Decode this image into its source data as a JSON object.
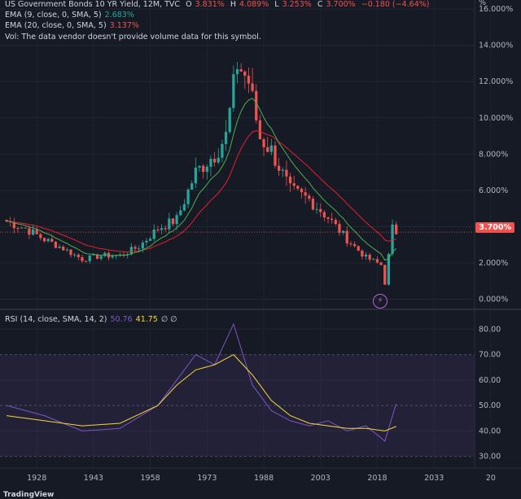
{
  "header": {
    "title": "US Government Bonds 10 YR Yield, 12M, TVC",
    "ohlc": {
      "o_label": "O",
      "o": "3.831%",
      "h_label": "H",
      "h": "4.089%",
      "l_label": "L",
      "l": "3.253%",
      "c_label": "C",
      "c": "3.700%",
      "change": "−0.180 (−4.64%)"
    },
    "ema9": {
      "label": "EMA (9, close, 0, SMA, 5)",
      "value": "2.683%"
    },
    "ema20": {
      "label": "EMA (20, close, 0, SMA, 5)",
      "value": "3.137%"
    },
    "vol_note": "Vol: The data vendor doesn't provide volume data for this symbol."
  },
  "price_axis": {
    "unit": "%",
    "ticks": [
      "16.000%",
      "14.000%",
      "12.000%",
      "10.000%",
      "8.000%",
      "6.000%",
      "4.000%",
      "2.000%",
      "0.000%"
    ],
    "current": "3.700%"
  },
  "rsi": {
    "label": "RSI (14, close, SMA, 14, 2)",
    "value": "50.76",
    "ma_value": "41.75",
    "extra": "∅ ∅",
    "ticks": [
      "80.00",
      "70.00",
      "60.00",
      "50.00",
      "40.00",
      "30.00"
    ]
  },
  "time_axis": {
    "ticks": [
      "1928",
      "1943",
      "1958",
      "1973",
      "1988",
      "2003",
      "2018",
      "2033",
      "20"
    ]
  },
  "branding": {
    "logo": "TradingView"
  },
  "colors": {
    "up": "#26a69a",
    "down": "#ef5350",
    "ema9": "#4caf50",
    "ema20": "#e91e2f",
    "rsi": "#7e57c2",
    "rsi_ma": "#f5d835",
    "bg": "#161a25"
  },
  "chart_data": [
    {
      "type": "candlestick",
      "x": [
        1920,
        1925,
        1930,
        1935,
        1940,
        1945,
        1950,
        1955,
        1960,
        1965,
        1970,
        1975,
        1978,
        1981,
        1984,
        1987,
        1990,
        1995,
        2000,
        2005,
        2010,
        2015,
        2019,
        2020,
        2022,
        2023
      ],
      "close": [
        4.3,
        3.9,
        3.3,
        2.8,
        2.2,
        2.4,
        2.4,
        2.9,
        3.9,
        4.4,
        7.0,
        8.0,
        9.0,
        13.0,
        12.0,
        8.9,
        8.2,
        6.0,
        5.5,
        4.5,
        3.3,
        2.3,
        1.9,
        0.9,
        3.9,
        3.7
      ],
      "ylim": [
        -0.2,
        16.5
      ]
    },
    {
      "type": "line",
      "x": [
        1920,
        1930,
        1940,
        1950,
        1960,
        1965,
        1970,
        1975,
        1980,
        1985,
        1990,
        1995,
        2000,
        2005,
        2010,
        2015,
        2020,
        2023
      ],
      "series": [
        {
          "name": "RSI",
          "values": [
            50,
            46,
            40,
            41,
            50,
            60,
            70,
            66,
            82,
            58,
            48,
            44,
            42,
            44,
            40,
            42,
            36,
            50.76
          ]
        },
        {
          "name": "RSI MA",
          "values": [
            46,
            44,
            42,
            43,
            50,
            58,
            64,
            66,
            70,
            62,
            52,
            46,
            43,
            42,
            41,
            41,
            40,
            41.75
          ]
        }
      ],
      "ylim": [
        27,
        83
      ]
    }
  ]
}
